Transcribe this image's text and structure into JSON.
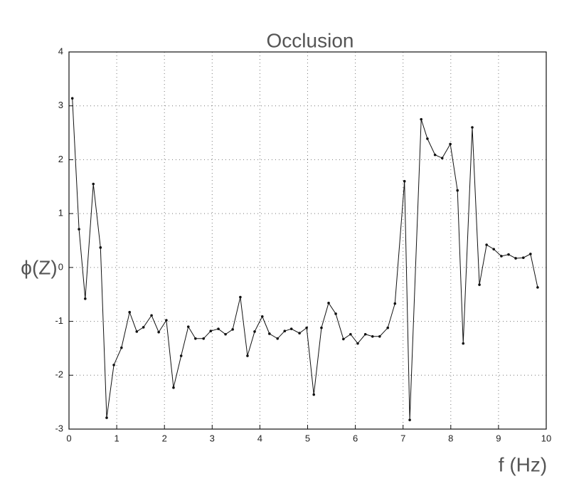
{
  "chart_data": {
    "type": "line",
    "title": "Occlusion",
    "xlabel": "f (Hz)",
    "ylabel": "ϕ(Z)",
    "xlim": [
      0,
      10
    ],
    "ylim": [
      -3,
      4
    ],
    "xticks": [
      0,
      1,
      2,
      3,
      4,
      5,
      6,
      7,
      8,
      9,
      10
    ],
    "yticks": [
      -3,
      -2,
      -1,
      0,
      1,
      2,
      3,
      4
    ],
    "grid": true,
    "x": [
      0.07,
      0.21,
      0.34,
      0.51,
      0.66,
      0.79,
      0.94,
      1.1,
      1.27,
      1.42,
      1.56,
      1.73,
      1.88,
      2.04,
      2.19,
      2.35,
      2.5,
      2.65,
      2.82,
      2.97,
      3.13,
      3.28,
      3.43,
      3.59,
      3.74,
      3.89,
      4.05,
      4.2,
      4.37,
      4.52,
      4.66,
      4.83,
      4.98,
      5.13,
      5.29,
      5.44,
      5.59,
      5.75,
      5.9,
      6.05,
      6.21,
      6.36,
      6.51,
      6.68,
      6.83,
      7.03,
      7.14,
      7.38,
      7.51,
      7.67,
      7.82,
      7.99,
      8.14,
      8.26,
      8.45,
      8.6,
      8.75,
      8.9,
      9.06,
      9.21,
      9.36,
      9.52,
      9.67,
      9.82
    ],
    "series": [
      {
        "color": "#111111",
        "values": [
          3.14,
          0.71,
          -0.58,
          1.55,
          0.37,
          -2.79,
          -1.81,
          -1.49,
          -0.83,
          -1.19,
          -1.11,
          -0.89,
          -1.2,
          -0.98,
          -2.23,
          -1.64,
          -1.1,
          -1.32,
          -1.32,
          -1.18,
          -1.14,
          -1.24,
          -1.15,
          -0.55,
          -1.64,
          -1.19,
          -0.91,
          -1.23,
          -1.32,
          -1.18,
          -1.14,
          -1.22,
          -1.12,
          -2.36,
          -1.12,
          -0.66,
          -0.86,
          -1.33,
          -1.24,
          -1.41,
          -1.24,
          -1.28,
          -1.28,
          -1.12,
          -0.67,
          1.6,
          -2.83,
          2.75,
          2.39,
          2.09,
          2.03,
          2.29,
          1.43,
          -1.41,
          2.6,
          -0.32,
          0.42,
          0.34,
          0.21,
          0.24,
          0.17,
          0.18,
          0.25,
          -0.37
        ]
      }
    ]
  }
}
